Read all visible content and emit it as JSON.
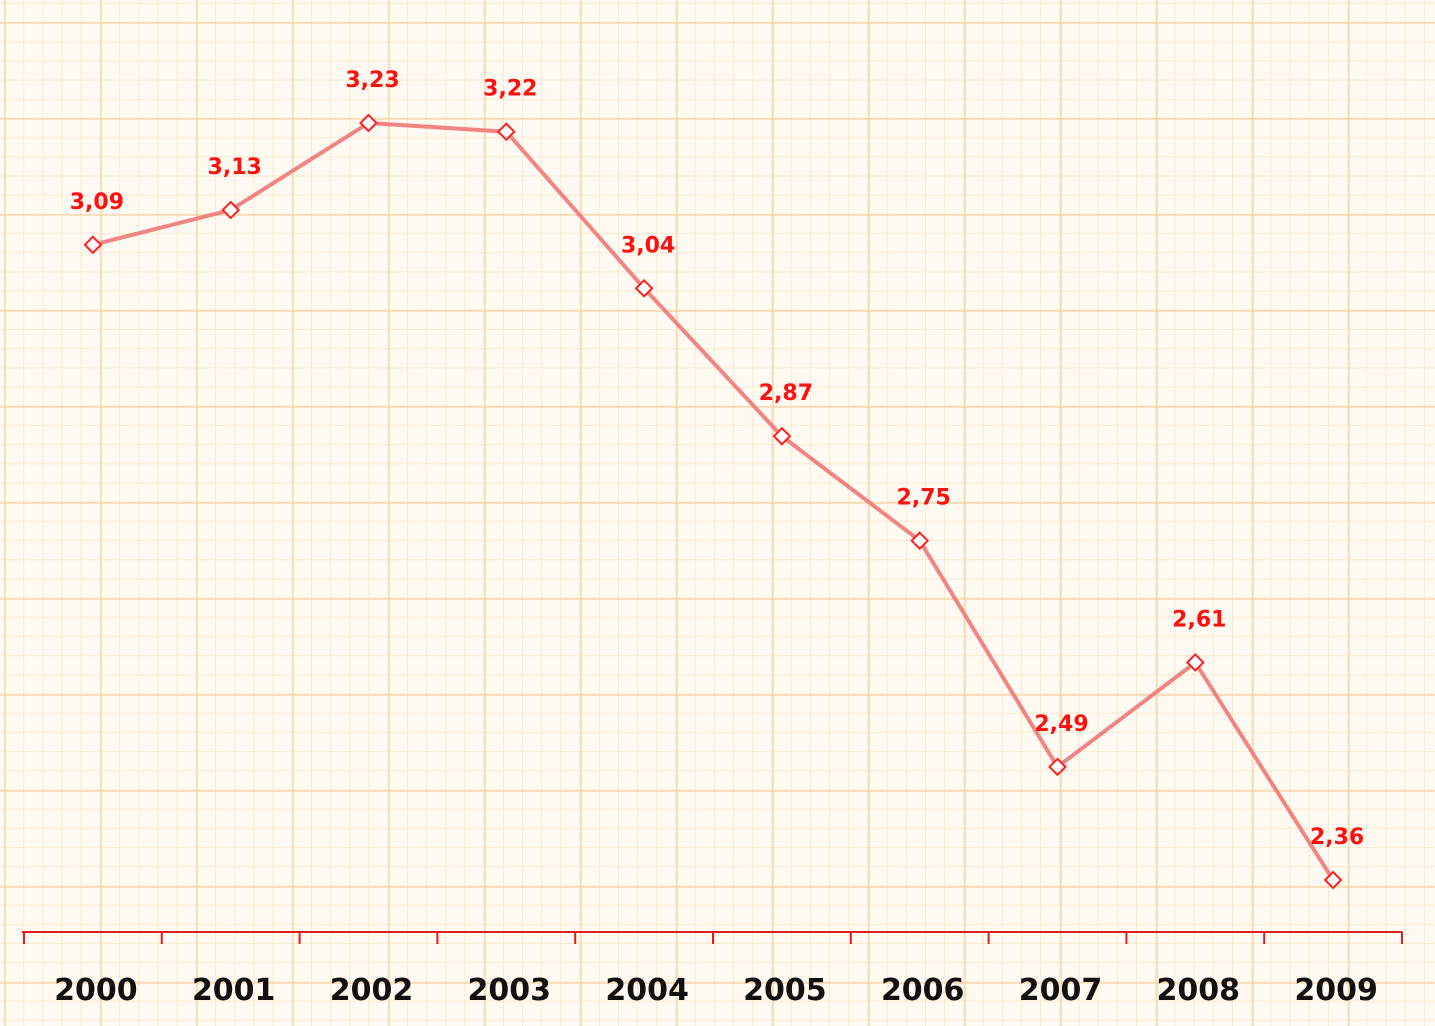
{
  "chart_data": {
    "type": "line",
    "categories": [
      "2000",
      "2001",
      "2002",
      "2003",
      "2004",
      "2005",
      "2006",
      "2007",
      "2008",
      "2009"
    ],
    "series": [
      {
        "color": "#f07878",
        "values": [
          3.09,
          3.13,
          3.23,
          3.22,
          3.04,
          2.87,
          2.75,
          2.49,
          2.61,
          2.36
        ],
        "value_labels": [
          "3,09",
          "3,13",
          "3,23",
          "3,22",
          "3,04",
          "2,87",
          "2,75",
          "2,49",
          "2,61",
          "2,36"
        ]
      }
    ],
    "grid": true
  }
}
